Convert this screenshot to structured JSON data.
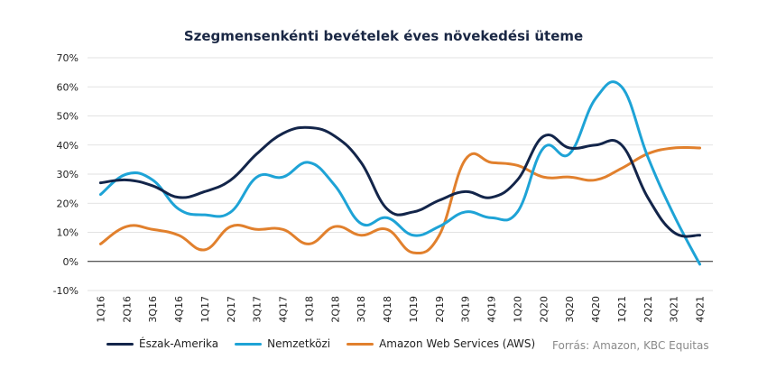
{
  "chart_data": {
    "type": "line",
    "title": "Szegmensenkénti bevételek éves növekedési üteme",
    "xlabel": "",
    "ylabel": "",
    "ylim": [
      -10,
      70
    ],
    "yticks": [
      -10,
      0,
      10,
      20,
      30,
      40,
      50,
      60,
      70
    ],
    "ytick_labels": [
      "-10%",
      "0%",
      "10%",
      "20%",
      "30%",
      "40%",
      "50%",
      "60%",
      "70%"
    ],
    "grid": "horizontal",
    "legend_placement": "bottom-left",
    "categories": [
      "1Q16",
      "2Q16",
      "3Q16",
      "4Q16",
      "1Q17",
      "2Q17",
      "3Q17",
      "4Q17",
      "1Q18",
      "2Q18",
      "3Q18",
      "4Q18",
      "1Q19",
      "2Q19",
      "3Q19",
      "4Q19",
      "1Q20",
      "2Q20",
      "3Q20",
      "4Q20",
      "1Q21",
      "2Q21",
      "3Q21",
      "4Q21"
    ],
    "series": [
      {
        "name": "Észak-Amerika",
        "color": "#13254a",
        "values": [
          27,
          28,
          26,
          22,
          24,
          28,
          37,
          44,
          46,
          43,
          34,
          18,
          17,
          21,
          24,
          22,
          28,
          43,
          39,
          40,
          40,
          22,
          10,
          9
        ]
      },
      {
        "name": "Nemzetközi",
        "color": "#1ea3d6",
        "values": [
          23,
          30,
          28,
          18,
          16,
          17,
          29,
          29,
          34,
          26,
          13,
          15,
          9,
          12,
          17,
          15,
          17,
          39,
          37,
          56,
          60,
          36,
          16,
          -1
        ]
      },
      {
        "name": "Amazon Web Services (AWS)",
        "color": "#e1802d",
        "values": [
          6,
          12,
          11,
          9,
          4,
          12,
          11,
          11,
          6,
          12,
          9,
          11,
          3,
          9,
          35,
          34,
          33,
          29,
          29,
          28,
          32,
          37,
          39,
          39
        ]
      }
    ]
  },
  "source": "Forrás: Amazon, KBC Equitas"
}
